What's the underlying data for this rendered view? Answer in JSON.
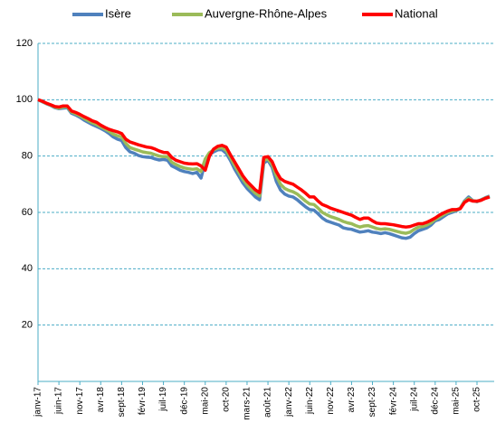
{
  "chart_data": {
    "type": "line",
    "categories": [
      "janv-17",
      null,
      null,
      null,
      null,
      "juin-17",
      null,
      null,
      null,
      null,
      "nov-17",
      null,
      null,
      null,
      null,
      "avr-18",
      null,
      null,
      null,
      null,
      "sept-18",
      null,
      null,
      null,
      null,
      "févr-19",
      null,
      null,
      null,
      null,
      "juil-19",
      null,
      null,
      null,
      null,
      "déc-19",
      null,
      null,
      null,
      null,
      "mai-20",
      null,
      null,
      null,
      null,
      "oct-20",
      null,
      null,
      null,
      null,
      "mars-21",
      null,
      null,
      null,
      null,
      "août-21",
      null,
      null,
      null,
      null,
      "janv-22",
      null,
      null,
      null,
      null,
      "juin-22",
      null,
      null,
      null,
      null,
      "nov-22",
      null,
      null,
      null,
      null,
      "avr-23",
      null,
      null,
      null,
      null,
      "sept-23",
      null,
      null,
      null,
      null,
      "févr-24",
      null,
      null,
      null,
      null,
      "juil-24",
      null,
      null,
      null,
      null,
      "déc-24",
      null,
      null,
      null,
      null,
      "mai-25",
      null,
      null,
      null,
      null,
      "oct-25",
      null,
      null,
      null
    ],
    "series": [
      {
        "name": "Isère",
        "color": "#4f81bd",
        "values": [
          100,
          99.3,
          98.6,
          98,
          97.2,
          96.8,
          97,
          97.2,
          95.2,
          94.6,
          93.8,
          92.8,
          92,
          91.2,
          90.5,
          89.8,
          89,
          88,
          86.8,
          86,
          85.5,
          83,
          81.5,
          81,
          80.2,
          79.8,
          79.6,
          79.5,
          79,
          78.6,
          78.8,
          78.5,
          76.5,
          75.8,
          75,
          74.5,
          74.2,
          73.8,
          74.2,
          72.2,
          78,
          80.5,
          81.5,
          82.2,
          82.3,
          81,
          78.5,
          75.5,
          73,
          70.5,
          68.5,
          67,
          65.5,
          64.5,
          77.5,
          78.5,
          76,
          71,
          68,
          66.5,
          65.8,
          65.5,
          64.5,
          63.2,
          62,
          61,
          60.8,
          59.5,
          58,
          57,
          56.5,
          56,
          55.5,
          54.5,
          54.2,
          54,
          53.5,
          53,
          53.2,
          53.5,
          53,
          52.8,
          52.5,
          52.8,
          52.5,
          52,
          51.5,
          51,
          50.8,
          51.2,
          52.5,
          53.5,
          54,
          54.5,
          55.5,
          57,
          57.5,
          58.5,
          59.5,
          60,
          60.5,
          61.5,
          64,
          65.5,
          64.2,
          63.8,
          64.5,
          65.2,
          65.8
        ]
      },
      {
        "name": "Auvergne-Rhône-Alpes",
        "color": "#9bbb59",
        "values": [
          100,
          99.4,
          98.7,
          98.1,
          97.4,
          97,
          97.4,
          97.5,
          95.6,
          95,
          94.3,
          93.4,
          92.6,
          91.8,
          91.2,
          90.4,
          89.6,
          88.8,
          87.8,
          87.2,
          86.8,
          84.5,
          83,
          82.5,
          82,
          81.5,
          81.2,
          81,
          80.5,
          80,
          79.8,
          79.8,
          77.8,
          77,
          76.3,
          75.8,
          75.5,
          75.3,
          75.5,
          74.5,
          79,
          81.2,
          82.2,
          82.8,
          83,
          82,
          79.5,
          76.8,
          74.3,
          71.8,
          69.8,
          68.2,
          66.8,
          65.8,
          78.5,
          79,
          77,
          73,
          70,
          68.5,
          67.8,
          67.3,
          66.5,
          65.3,
          64,
          63,
          62.8,
          61.5,
          60,
          59.2,
          58.5,
          58,
          57.5,
          56.8,
          56.3,
          56,
          55.3,
          54.8,
          55.2,
          55.3,
          54.8,
          54.3,
          54,
          54.2,
          54,
          53.6,
          53.2,
          52.8,
          52.6,
          53,
          54,
          54.8,
          55,
          55.5,
          56.3,
          57.5,
          58.3,
          59.2,
          60,
          60.5,
          60.8,
          61.5,
          63.8,
          65,
          64.1,
          63.9,
          64.4,
          65.1,
          65.6
        ]
      },
      {
        "name": "National",
        "color": "#ff0000",
        "values": [
          100,
          99.5,
          98.8,
          98.2,
          97.6,
          97.4,
          97.8,
          97.8,
          96,
          95.5,
          94.8,
          94,
          93.3,
          92.5,
          92,
          91,
          90.2,
          89.5,
          89,
          88.6,
          88,
          86,
          85,
          84.5,
          84,
          83.6,
          83.2,
          83,
          82.5,
          81.8,
          81.3,
          81.2,
          79.5,
          78.5,
          78,
          77.5,
          77.3,
          77.2,
          77.3,
          76.5,
          75,
          80,
          82.5,
          83.5,
          83.8,
          83.2,
          80.5,
          78,
          75.5,
          73,
          71,
          69.5,
          68,
          67,
          79.5,
          79.8,
          78,
          74.5,
          72,
          71,
          70.5,
          70,
          69,
          68,
          66.8,
          65.5,
          65.5,
          64,
          62.8,
          62.2,
          61.5,
          61,
          60.5,
          60,
          59.5,
          59,
          58.2,
          57.5,
          58,
          58,
          57,
          56.2,
          56,
          56,
          55.8,
          55.6,
          55.3,
          55,
          54.8,
          55,
          55.5,
          56,
          56,
          56.5,
          57.2,
          58,
          59,
          59.8,
          60.5,
          61,
          61,
          61.3,
          63.5,
          64.5,
          64,
          64,
          64.3,
          65,
          65.5
        ]
      }
    ],
    "ylim": [
      0,
      120
    ],
    "yticks": [
      20,
      40,
      60,
      80,
      100,
      120
    ],
    "grid": true,
    "legend": "top"
  }
}
